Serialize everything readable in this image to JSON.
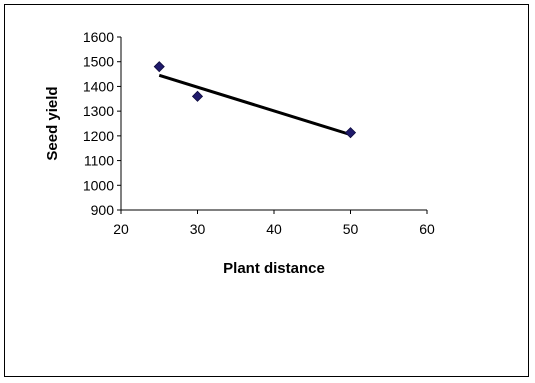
{
  "chart_data": {
    "type": "scatter",
    "title": "",
    "xlabel": "Plant distance",
    "ylabel": "Seed yield",
    "xlim": [
      20,
      60
    ],
    "ylim": [
      900,
      1600
    ],
    "x_ticks": [
      20,
      30,
      40,
      50,
      60
    ],
    "y_ticks": [
      900,
      1000,
      1100,
      1200,
      1300,
      1400,
      1500,
      1600
    ],
    "grid": false,
    "legend": "none",
    "marker": "diamond",
    "colors": {
      "marker": "#1f1a6b",
      "trendline": "#000000",
      "axis": "#000000"
    },
    "points": [
      {
        "x": 25,
        "y": 1480
      },
      {
        "x": 30,
        "y": 1360
      },
      {
        "x": 50,
        "y": 1213
      }
    ],
    "trendline": {
      "type": "linear",
      "x_start": 25,
      "y_start": 1445,
      "x_end": 50,
      "y_end": 1205
    }
  }
}
